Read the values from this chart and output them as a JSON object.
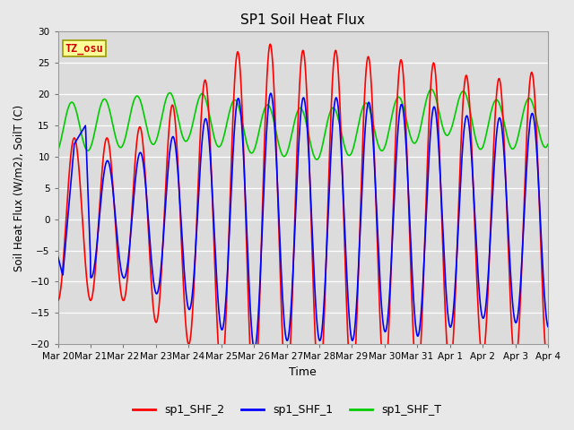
{
  "title": "SP1 Soil Heat Flux",
  "xlabel": "Time",
  "ylabel": "Soil Heat Flux (W/m2), SoilT (C)",
  "ylim": [
    -20,
    30
  ],
  "yticks": [
    -20,
    -15,
    -10,
    -5,
    0,
    5,
    10,
    15,
    20,
    25,
    30
  ],
  "xtick_labels": [
    "Mar 20",
    "Mar 21",
    "Mar 22",
    "Mar 23",
    "Mar 24",
    "Mar 25",
    "Mar 26",
    "Mar 27",
    "Mar 28",
    "Mar 29",
    "Mar 30",
    "Mar 31",
    "Apr 1",
    "Apr 2",
    "Apr 3",
    "Apr 4"
  ],
  "colors": {
    "sp1_SHF_2": "#ff0000",
    "sp1_SHF_1": "#0000ff",
    "sp1_SHF_T": "#00cc00"
  },
  "tz_label": "TZ_osu",
  "fig_facecolor": "#e8e8e8",
  "plot_bg_color": "#dcdcdc",
  "linewidth": 1.2,
  "n_days": 15,
  "points_per_day": 144
}
